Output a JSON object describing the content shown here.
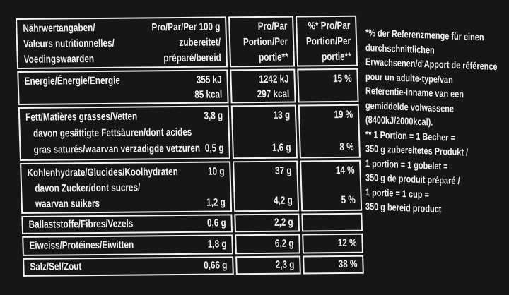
{
  "colors": {
    "background": "#161616",
    "ink": "#f2f2f2"
  },
  "table": {
    "header": {
      "title": "Nährwertangaben/\nValeurs nutritionnelles/\nVoedingswaarden",
      "per100": "Pro/Par/Per 100 g\nzubereitet/\npréparé/bereid",
      "portion": "Pro/Par\nPortion/Per\nportie**",
      "percent": "%* Pro/Par\nPortion/Per\nportie**"
    },
    "rows": {
      "energy": {
        "label": "Energie/Énergie/Energie",
        "per100": "355 kJ\n85 kcal",
        "portion": "1242 kJ\n297 kcal",
        "percent": "15 %"
      },
      "fat": {
        "label": "Fett/Matières grasses/Vetten",
        "sub_line1": "davon gesättigte Fettsäuren/dont acides",
        "sub_line2": "gras saturés/waarvan verzadigde vetzuren",
        "per100": "3,8 g",
        "sub_per100": "0,5 g",
        "portion": "13 g",
        "sub_portion": "1,6 g",
        "percent": "19 %",
        "sub_percent": "8 %"
      },
      "carbs": {
        "label": "Kohlenhydrate/Glucides/Koolhydraten",
        "sub_line1": "davon Zucker/dont sucres/",
        "sub_line2": "waarvan suikers",
        "per100": "10 g",
        "sub_per100": "1,2 g",
        "portion": "37 g",
        "sub_portion": "4,2 g",
        "percent": "14 %",
        "sub_percent": "5 %"
      },
      "fibre": {
        "label": "Ballaststoffe/Fibres/Vezels",
        "per100": "0,6 g",
        "portion": "2,2 g",
        "percent": ""
      },
      "protein": {
        "label": "Eiweiss/Protéines/Eiwitten",
        "per100": "1,8 g",
        "portion": "6,2 g",
        "percent": "12 %"
      },
      "salt": {
        "label": "Salz/Sel/Zout",
        "per100": "0,66 g",
        "portion": "2,3 g",
        "percent": "38 %"
      }
    }
  },
  "footnote": "*% der Referenzmenge für einen\ndurchschnittlichen\nErwachsenen/d'Apport de référence\npour un adulte-type/van\nReferentie-inname van een\ngemiddelde volwassene\n(8400kJ/2000kcal).\n** 1 Portion = 1 Becher =\n350 g zubereitetes Produkt /\n1 portion = 1 gobelet =\n350 g de produit préparé /\n1 portie = 1 cup =\n350 g bereid product"
}
